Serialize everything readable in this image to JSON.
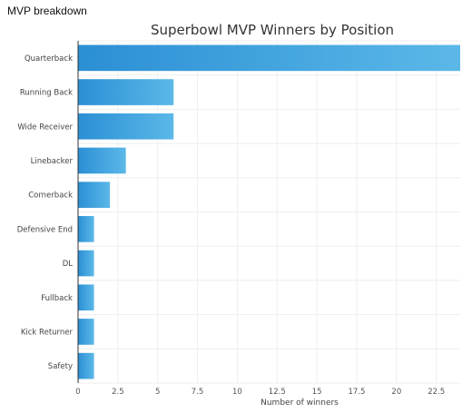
{
  "header": {
    "title": "MVP breakdown"
  },
  "colors": {
    "bar_start": "#2b8fd4",
    "bar_end": "#5bb8e8",
    "grid": "#eeeeee",
    "axis": "#333333"
  },
  "chart_data": {
    "type": "bar",
    "orientation": "horizontal",
    "title": "Superbowl MVP Winners by Position",
    "xlabel": "Number of winners",
    "ylabel": "",
    "categories": [
      "Quarterback",
      "Running Back",
      "Wide Receiver",
      "Linebacker",
      "Cornerback",
      "Defensive End",
      "DL",
      "Fullback",
      "Kick Returner",
      "Safety"
    ],
    "values": [
      24,
      6,
      6,
      3,
      2,
      1,
      1,
      1,
      1,
      1
    ],
    "xlim": [
      0,
      24
    ],
    "xticks": [
      "0",
      "2.5",
      "5",
      "7.5",
      "10",
      "12.5",
      "15",
      "17.5",
      "20",
      "22.5"
    ],
    "grid": true
  }
}
